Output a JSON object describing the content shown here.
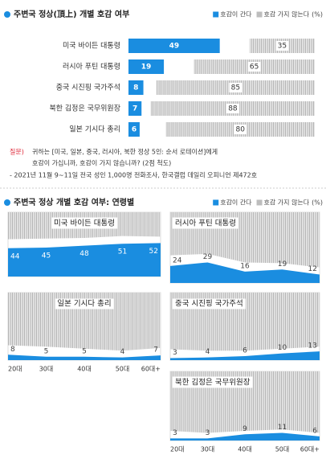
{
  "chart_data": [
    {
      "type": "hbar",
      "title": "주변국 정상(頂上) 개별 호감 여부",
      "unit": "(%)",
      "categories": [
        "미국 바이든 대통령",
        "러시아 푸틴 대통령",
        "중국 시진핑 국가주석",
        "북한 김정은 국무위원장",
        "일본 기시다 총리"
      ],
      "series": [
        {
          "name": "호감이 간다",
          "color": "#1a8de0",
          "values": [
            49,
            19,
            8,
            7,
            6
          ]
        },
        {
          "name": "호감 가지 않는다",
          "color": "#bdbdbd",
          "values": [
            35,
            65,
            85,
            88,
            80
          ]
        }
      ],
      "xlim": [
        0,
        100
      ]
    },
    {
      "type": "area",
      "title": "미국 바이든 대통령",
      "categories": [
        "20대",
        "30대",
        "40대",
        "50대",
        "60대+"
      ],
      "series": [
        {
          "name": "호감이 간다",
          "color": "#1a8de0",
          "values": [
            44,
            45,
            48,
            51,
            52
          ]
        },
        {
          "name": "호감 가지 않는다",
          "color": "#bdbdbd",
          "values": [
            42,
            41,
            40,
            37,
            38
          ]
        }
      ],
      "ylim": [
        0,
        100
      ]
    },
    {
      "type": "area",
      "title": "러시아 푸틴 대통령",
      "categories": [
        "20대",
        "30대",
        "40대",
        "50대",
        "60대+"
      ],
      "series": [
        {
          "name": "호감이 간다",
          "color": "#1a8de0",
          "values": [
            24,
            29,
            16,
            19,
            12
          ]
        },
        {
          "name": "호감 가지 않는다",
          "color": "#bdbdbd",
          "values": [
            61,
            59,
            71,
            72,
            78
          ]
        }
      ],
      "ylim": [
        0,
        100
      ]
    },
    {
      "type": "area",
      "title": "일본 기시다 총리",
      "categories": [
        "20대",
        "30대",
        "40대",
        "50대",
        "60대+"
      ],
      "series": [
        {
          "name": "호감이 간다",
          "color": "#1a8de0",
          "values": [
            8,
            5,
            5,
            4,
            7
          ]
        },
        {
          "name": "호감 가지 않는다",
          "color": "#bdbdbd",
          "values": [
            78,
            80,
            83,
            86,
            82
          ]
        }
      ],
      "ylim": [
        0,
        100
      ]
    },
    {
      "type": "area",
      "title": "중국 시진핑 국가주석",
      "categories": [
        "20대",
        "30대",
        "40대",
        "50대",
        "60대+"
      ],
      "series": [
        {
          "name": "호감이 간다",
          "color": "#1a8de0",
          "values": [
            3,
            4,
            6,
            10,
            13
          ]
        },
        {
          "name": "호감 가지 않는다",
          "color": "#bdbdbd",
          "values": [
            84,
            86,
            86,
            83,
            80
          ]
        }
      ],
      "ylim": [
        0,
        100
      ]
    },
    {
      "type": "area",
      "title": "북한 김정은 국무위원장",
      "categories": [
        "20대",
        "30대",
        "40대",
        "50대",
        "60대+"
      ],
      "series": [
        {
          "name": "호감이 간다",
          "color": "#1a8de0",
          "values": [
            3,
            3,
            9,
            11,
            6
          ]
        },
        {
          "name": "호감 가지 않는다",
          "color": "#bdbdbd",
          "values": [
            86,
            89,
            86,
            84,
            89
          ]
        }
      ],
      "ylim": [
        0,
        100
      ]
    }
  ],
  "notes": {
    "question_label": "질문)",
    "question_lines": [
      "귀하는 [미국, 일본, 중국, 러시아, 북한 정상 5인: 순서 로테이션]에게",
      "호감이 가십니까, 호감이 가지 않습니까? (2점 척도)"
    ],
    "source": "- 2021년 11월 9~11일 전국 성인 1,000명 전화조사, 한국갤럽 데일리 오피니언 제472호"
  },
  "age_section": {
    "title": "주변국 정상 개별 호감 여부: 연령별",
    "unit": "(%)"
  }
}
